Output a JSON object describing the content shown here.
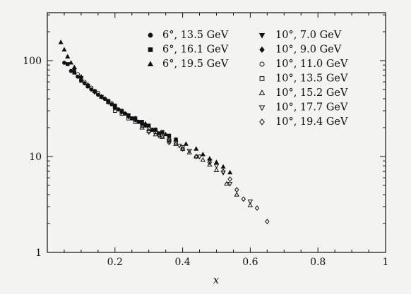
{
  "chart_data": {
    "type": "scatter",
    "title": "",
    "xlabel": "x",
    "ylabel": "",
    "xlim": [
      0,
      1
    ],
    "ylim": [
      1,
      300
    ],
    "yscale": "log",
    "x_ticks": [
      "0.2",
      "0.4",
      "0.6",
      "0.8",
      "1"
    ],
    "x_tick_values": [
      0.2,
      0.4,
      0.6,
      0.8,
      1.0
    ],
    "y_ticks": [
      "1",
      "10",
      "100"
    ],
    "y_tick_values": [
      1,
      10,
      100
    ],
    "grid": false,
    "legend_placement": "top-right (two columns)",
    "series": [
      {
        "name": "6°, 13.5 GeV",
        "marker": "circle",
        "x": [
          0.05,
          0.07,
          0.09,
          0.11,
          0.13,
          0.15,
          0.17,
          0.19,
          0.21,
          0.23,
          0.25,
          0.27,
          0.29,
          0.31,
          0.33
        ],
        "y": [
          95,
          78,
          68,
          58,
          50,
          44,
          40,
          35,
          31,
          28,
          25,
          23,
          21,
          19,
          17.5
        ]
      },
      {
        "name": "6°, 16.1 GeV",
        "marker": "square",
        "x": [
          0.06,
          0.08,
          0.1,
          0.12,
          0.14,
          0.16,
          0.18,
          0.2,
          0.22,
          0.24,
          0.26,
          0.28,
          0.3,
          0.32,
          0.34,
          0.36,
          0.38
        ],
        "y": [
          92,
          75,
          62,
          54,
          48,
          42,
          38,
          34,
          30,
          27,
          25,
          23,
          21,
          19,
          18,
          16.5,
          15
        ]
      },
      {
        "name": "6°, 19.5 GeV",
        "marker": "triangle-up",
        "x": [
          0.04,
          0.05,
          0.06,
          0.07,
          0.08,
          0.1,
          0.12,
          0.14,
          0.16,
          0.18,
          0.2,
          0.23,
          0.26,
          0.29,
          0.32,
          0.35,
          0.38,
          0.41,
          0.44,
          0.46,
          0.48,
          0.5,
          0.52,
          0.54
        ],
        "y": [
          155,
          130,
          110,
          95,
          85,
          68,
          56,
          48,
          42,
          37,
          33,
          28,
          25,
          22,
          19,
          17,
          15,
          13.5,
          12,
          10.5,
          9.5,
          8.7,
          7.8,
          6.8
        ]
      },
      {
        "name": "10°, 7.0 GeV",
        "marker": "triangle-down-filled",
        "x": [
          0.08,
          0.1,
          0.12,
          0.14,
          0.16,
          0.18,
          0.2,
          0.22
        ],
        "y": [
          80,
          66,
          55,
          47,
          42,
          37,
          32,
          29
        ]
      },
      {
        "name": "10°, 9.0 GeV",
        "marker": "diamond-filled",
        "x": [
          0.1,
          0.12,
          0.14,
          0.16,
          0.18,
          0.2,
          0.22,
          0.24,
          0.26,
          0.28
        ],
        "y": [
          62,
          54,
          47,
          42,
          37,
          32,
          29,
          26,
          24,
          22
        ]
      },
      {
        "name": "10°, 11.0 GeV",
        "marker": "circle-open",
        "x": [
          0.09,
          0.11,
          0.13,
          0.15,
          0.17,
          0.19,
          0.21,
          0.23,
          0.25,
          0.27,
          0.29,
          0.31,
          0.33
        ],
        "y": [
          72,
          60,
          52,
          46,
          40,
          36,
          31,
          28,
          25,
          23,
          21,
          19,
          17
        ]
      },
      {
        "name": "10°, 13.5 GeV",
        "marker": "square-open",
        "x": [
          0.2,
          0.22,
          0.24,
          0.26,
          0.28,
          0.3,
          0.32,
          0.34,
          0.36,
          0.38,
          0.4
        ],
        "y": [
          30,
          28,
          25,
          23,
          21,
          19.5,
          18,
          16.5,
          15,
          14,
          12.5
        ]
      },
      {
        "name": "10°, 15.2 GeV",
        "marker": "triangle-up-open",
        "x": [
          0.28,
          0.3,
          0.32,
          0.34,
          0.36,
          0.38,
          0.4,
          0.42,
          0.44,
          0.46,
          0.48,
          0.5,
          0.53,
          0.56,
          0.6
        ],
        "y": [
          20,
          18.5,
          17,
          16,
          15,
          13.5,
          12,
          11,
          10,
          9.2,
          8.2,
          7.2,
          5.2,
          4.0,
          3.1
        ]
      },
      {
        "name": "10°, 17.7 GeV",
        "marker": "triangle-down-open",
        "x": [
          0.3,
          0.33,
          0.36,
          0.39,
          0.42,
          0.45,
          0.48,
          0.5,
          0.52,
          0.54,
          0.6
        ],
        "y": [
          18,
          16.5,
          14.5,
          13,
          11.5,
          10,
          9,
          8,
          6.8,
          5.2,
          3.4
        ]
      },
      {
        "name": "10°, 19.4 GeV",
        "marker": "diamond-open",
        "x": [
          0.36,
          0.4,
          0.44,
          0.48,
          0.52,
          0.54,
          0.56,
          0.58,
          0.62,
          0.65
        ],
        "y": [
          14,
          12,
          10,
          8.7,
          7,
          5.8,
          4.5,
          3.6,
          2.9,
          2.1
        ]
      }
    ]
  }
}
